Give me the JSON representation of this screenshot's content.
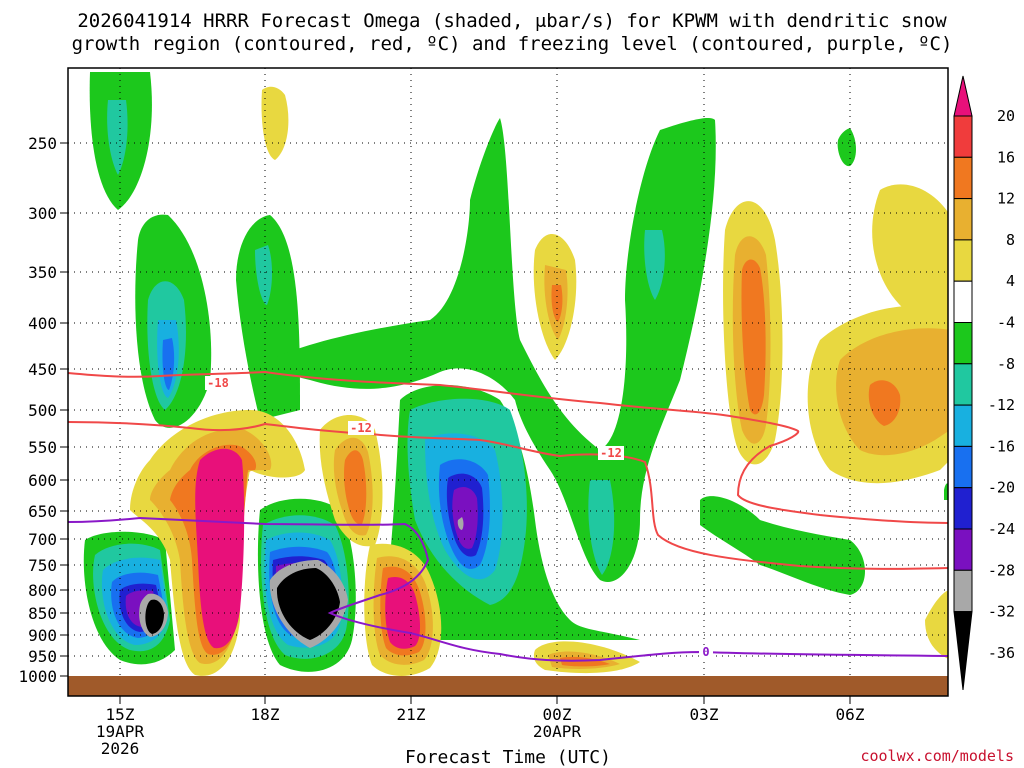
{
  "chart_data": {
    "type": "heatmap",
    "title_line1": "2026041914 HRRR Forecast Omega (shaded, μbar/s) for KPWM with dendritic snow",
    "title_line2": "growth region (contoured, red, ºC) and freezing level (contoured, purple, ºC)",
    "xlabel": "Forecast Time (UTC)",
    "credit": "coolwx.com/models",
    "y_ticks": [
      "250",
      "300",
      "350",
      "400",
      "450",
      "500",
      "550",
      "600",
      "650",
      "700",
      "750",
      "800",
      "850",
      "900",
      "950",
      "1000"
    ],
    "x_ticks": [
      {
        "label": "15Z",
        "sub1": "19APR",
        "sub2": "2026"
      },
      {
        "label": "18Z",
        "sub1": "",
        "sub2": ""
      },
      {
        "label": "21Z",
        "sub1": "",
        "sub2": ""
      },
      {
        "label": "00Z",
        "sub1": "20APR",
        "sub2": ""
      },
      {
        "label": "03Z",
        "sub1": "",
        "sub2": ""
      },
      {
        "label": "06Z",
        "sub1": "",
        "sub2": ""
      }
    ],
    "colorbar_labels": [
      "20",
      "16",
      "12",
      "8",
      "4",
      "-4",
      "-8",
      "-12",
      "-16",
      "-20",
      "-24",
      "-28",
      "-32",
      "-36"
    ],
    "colorbar_colors": [
      "#e8107a",
      "#f03c3c",
      "#f07820",
      "#e8b030",
      "#e8d840",
      "#ffffff",
      "#1cc81c",
      "#20c8a0",
      "#18b0e0",
      "#1870f0",
      "#2020d0",
      "#7a10c0",
      "#a8a8a8",
      "#000000"
    ],
    "contour_labels": {
      "dgz_upper": "-18",
      "dgz_lower": "-12",
      "dgz_lower_b": "-12",
      "freezing": "0"
    },
    "contour_colors": {
      "dgz": "#f04848",
      "freezing": "#8a18c8",
      "ground": "#a05a2a"
    }
  }
}
